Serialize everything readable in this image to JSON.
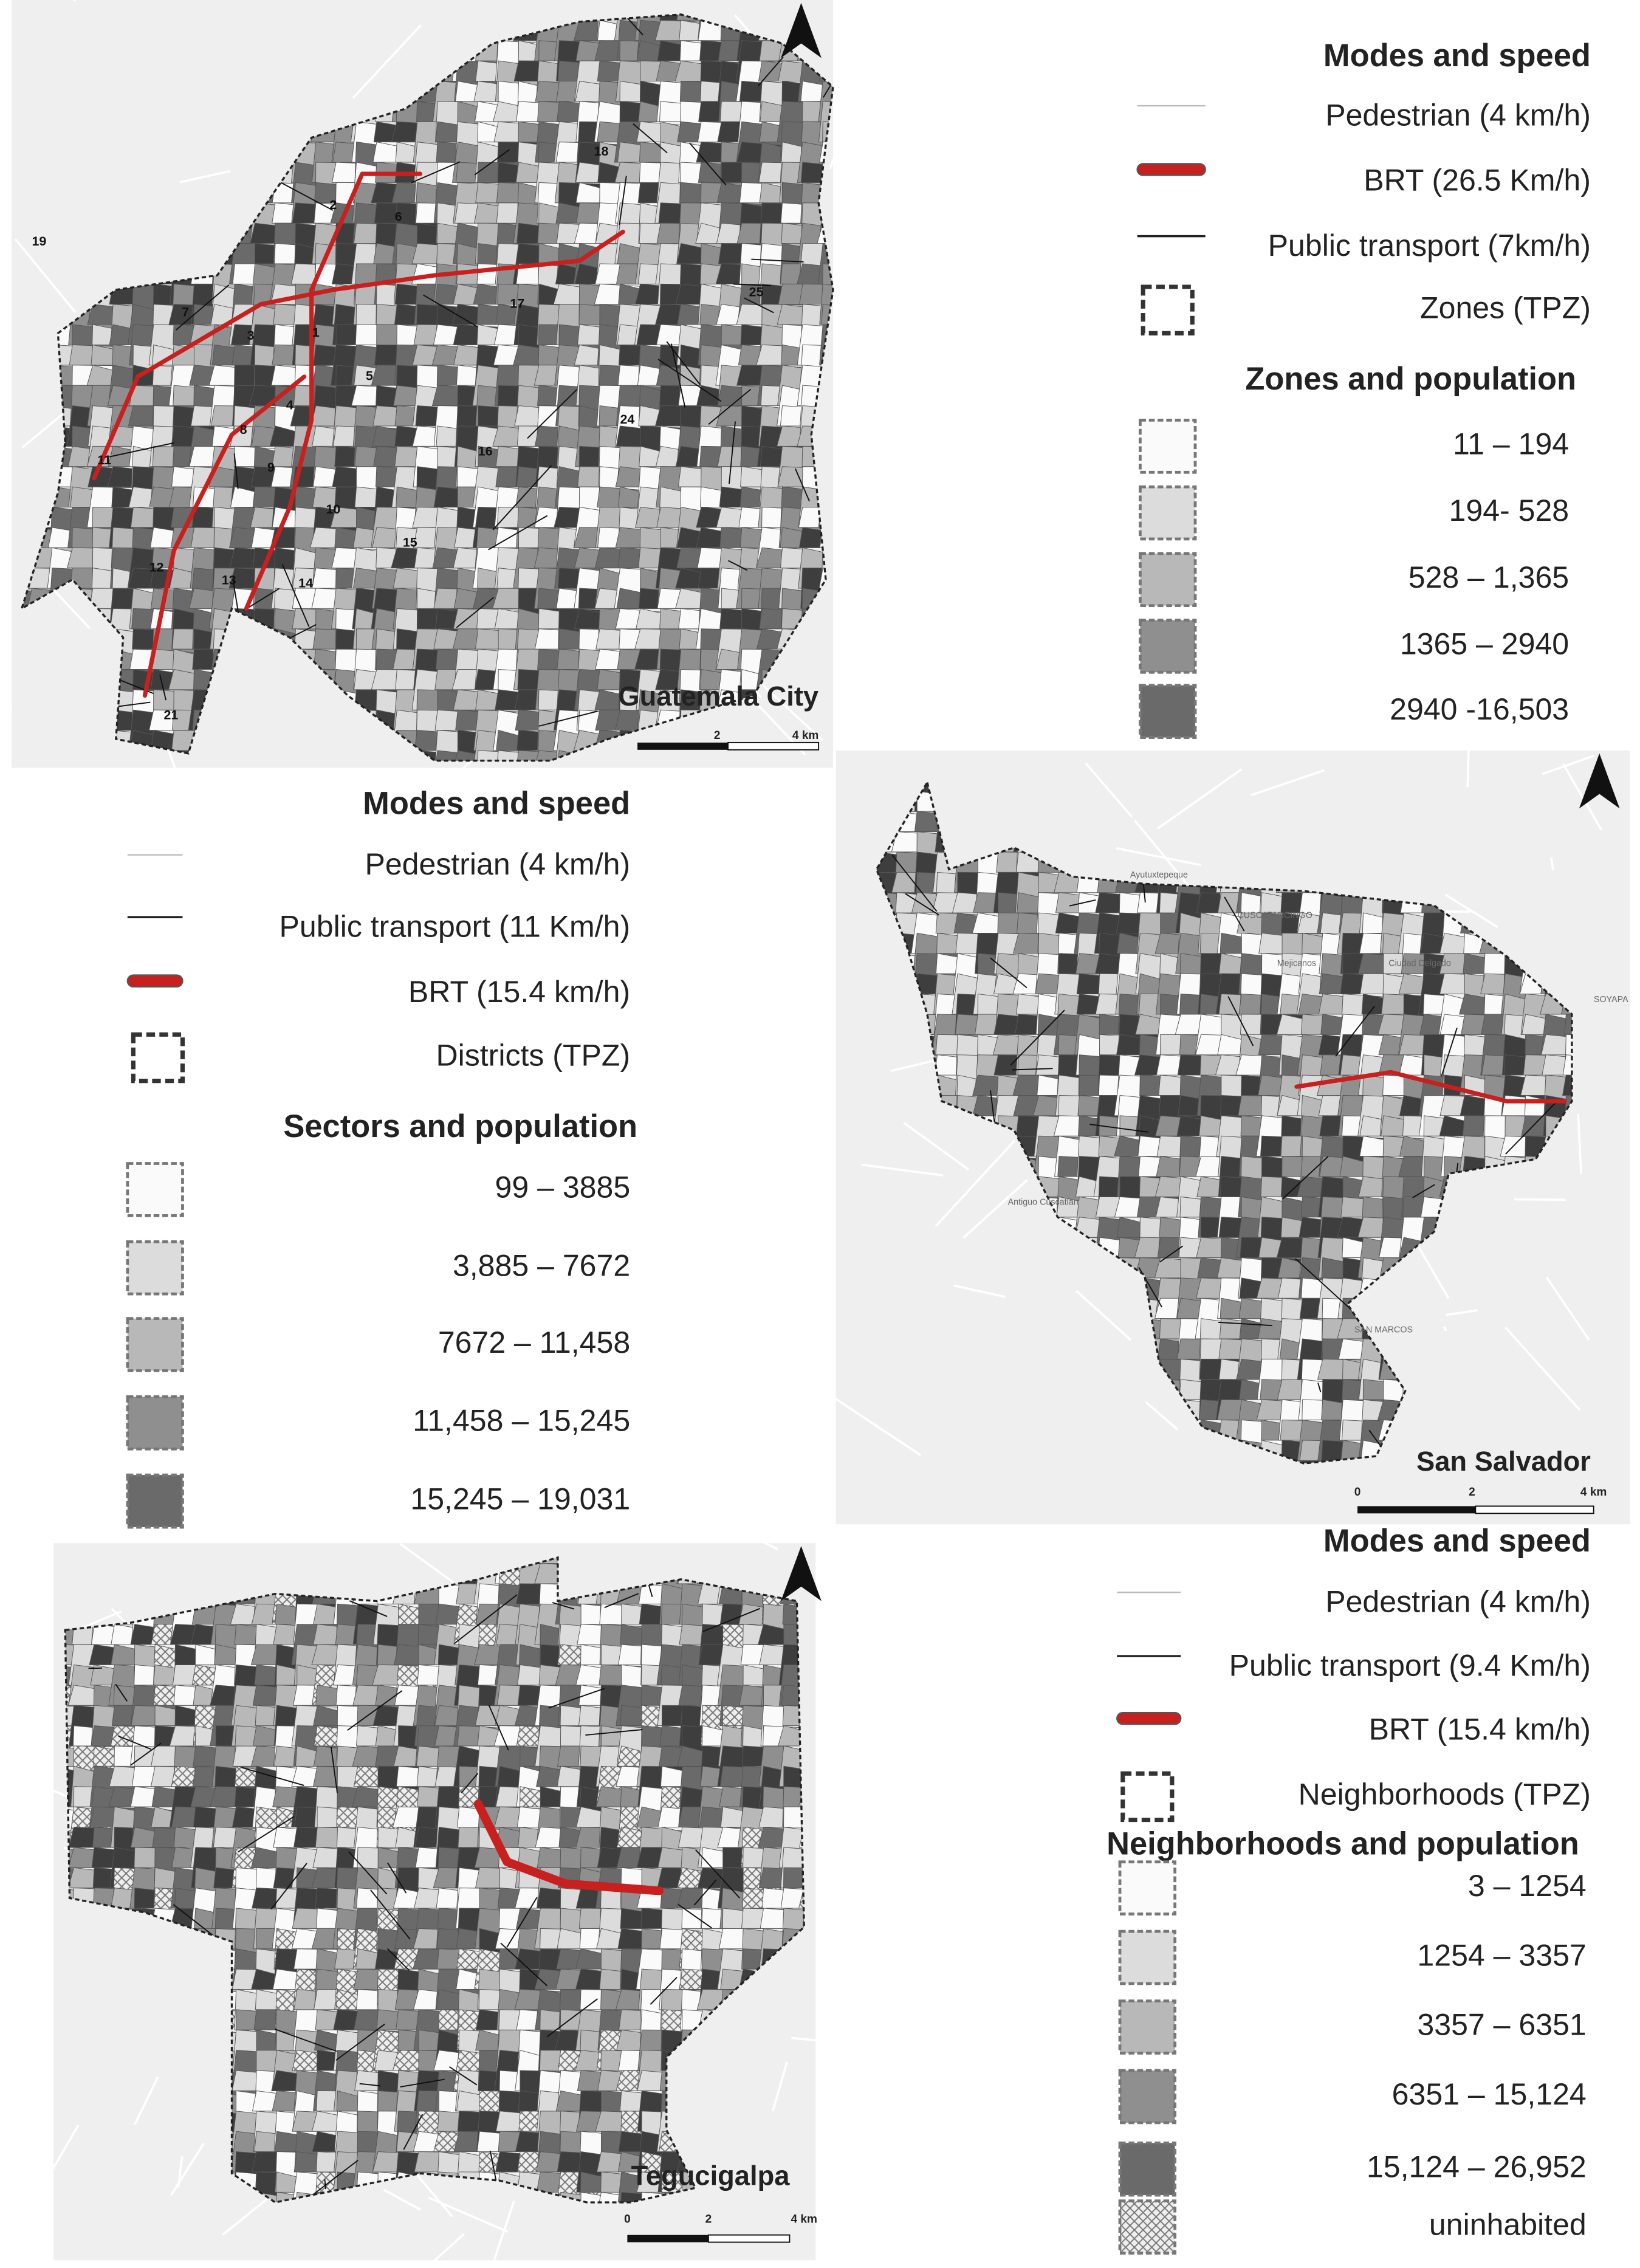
{
  "maps": [
    {
      "city": "Guatemala City",
      "modes_title": "Modes and speed",
      "modes": [
        "Pedestrian (4 km/h)",
        "BRT (26.5  Km/h)",
        "Public transport (7km/h)",
        "Zones (TPZ)"
      ],
      "population_title": "Zones and population",
      "classes": [
        "11 – 194",
        "194- 528",
        "528 – 1,365",
        "1365 – 2940",
        "2940 -16,503"
      ],
      "scale": [
        "2",
        "4 km"
      ],
      "zone_labels": [
        "19",
        "2",
        "6",
        "18",
        "7",
        "3",
        "1",
        "17",
        "25",
        "5",
        "11",
        "8",
        "4",
        "9",
        "24",
        "16",
        "10",
        "15",
        "12",
        "13",
        "14",
        "21"
      ]
    },
    {
      "city": "San Salvador",
      "modes_title": "Modes and speed",
      "modes": [
        "Pedestrian (4 km/h)",
        "Public transport (11  Km/h)",
        "BRT (15.4 km/h)",
        "Districts (TPZ)"
      ],
      "population_title": "Sectors and population",
      "classes": [
        "99 – 3885",
        "3,885 – 7672",
        "7672 – 11,458",
        "11,458 – 15,245",
        "15,245 – 19,031"
      ],
      "scale": [
        "0",
        "2",
        "4 km"
      ],
      "place_names": [
        "Ayutuxtepeque",
        "CUSCATANCINGO",
        "Mejicanos",
        "Ciudad Delgado",
        "SOYAPA",
        "Antiguo Cuscatlan",
        "SAN MARCOS"
      ]
    },
    {
      "city": "Tegucigalpa",
      "modes_title": "Modes and speed",
      "modes": [
        "Pedestrian (4 km/h)",
        "Public transport (9.4  Km/h)",
        "BRT (15.4 km/h)",
        "Neighborhoods (TPZ)"
      ],
      "population_title": "Neighborhoods and population",
      "classes": [
        "3 – 1254",
        "1254 – 3357",
        "3357 – 6351",
        "6351 – 15,124",
        "15,124 – 26,952",
        "uninhabited"
      ],
      "scale": [
        "0",
        "2",
        "4 km"
      ]
    }
  ]
}
